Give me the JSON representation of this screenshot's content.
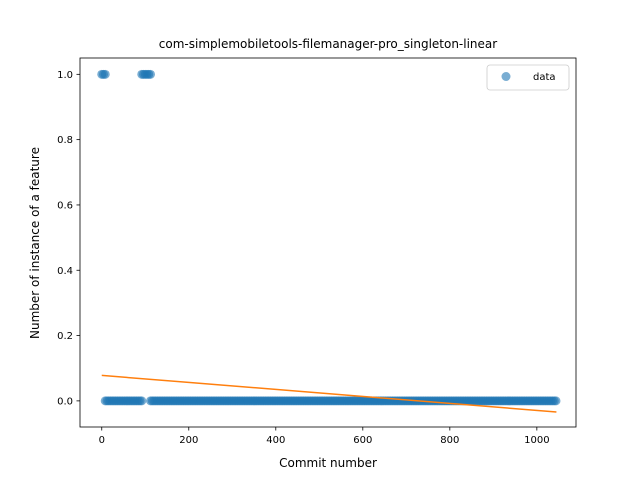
{
  "chart_data": {
    "type": "scatter",
    "title": "com-simplemobiletools-filemanager-pro_singleton-linear",
    "xlabel": "Commit number",
    "ylabel": "Number of instance of a feature",
    "xlim": [
      -50,
      1090
    ],
    "ylim": [
      -0.08,
      1.05
    ],
    "xticks": [
      0,
      200,
      400,
      600,
      800,
      1000
    ],
    "yticks": [
      0.0,
      0.2,
      0.4,
      0.6,
      0.8,
      1.0
    ],
    "legend": {
      "placement": "top-right",
      "entries": [
        "data"
      ]
    },
    "grid": false,
    "colors": {
      "data": "#1f77b4",
      "fit": "#ff7f0e"
    },
    "series": [
      {
        "name": "data",
        "kind": "scatter",
        "segments": [
          {
            "x_start": 0,
            "x_end": 8,
            "y": 1.0
          },
          {
            "x_start": 92,
            "x_end": 112,
            "y": 1.0
          },
          {
            "x_start": 8,
            "x_end": 92,
            "y": 0.0
          },
          {
            "x_start": 112,
            "x_end": 1045,
            "y": 0.0
          }
        ]
      },
      {
        "kind": "line",
        "x": [
          0,
          1045
        ],
        "y": [
          0.078,
          -0.034
        ]
      }
    ]
  }
}
